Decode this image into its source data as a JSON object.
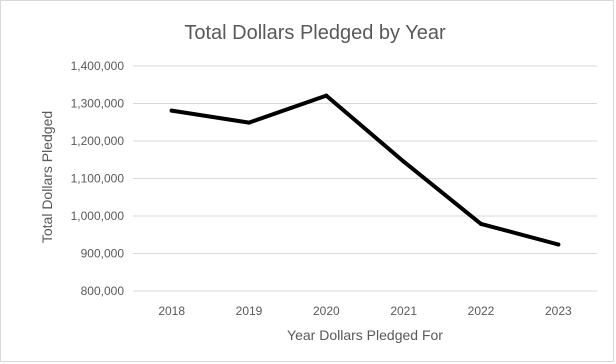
{
  "chart_data": {
    "type": "line",
    "title": "Total Dollars Pledged by Year",
    "xlabel": "Year Dollars Pledged For",
    "ylabel": "Total Dollars Pledged",
    "categories": [
      "2018",
      "2019",
      "2020",
      "2021",
      "2022",
      "2023"
    ],
    "series": [
      {
        "name": "",
        "values": [
          1281000,
          1249000,
          1321000,
          1145000,
          979000,
          924000
        ],
        "color": "#000000"
      }
    ],
    "ylim": [
      800000,
      1400000
    ],
    "yticks": [
      800000,
      900000,
      1000000,
      1100000,
      1200000,
      1300000,
      1400000
    ],
    "ytick_labels": [
      "800,000",
      "900,000",
      "1,000,000",
      "1,100,000",
      "1,200,000",
      "1,300,000",
      "1,400,000"
    ],
    "grid": true,
    "legend": "none"
  }
}
